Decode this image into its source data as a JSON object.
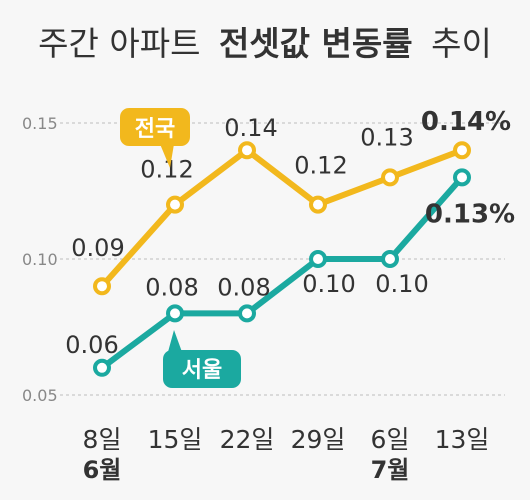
{
  "chart_data": {
    "type": "line",
    "title_regular": "주간 아파트",
    "title_bold": "전셋값 변동률",
    "title_suffix": "추이",
    "x": [
      "8일",
      "15일",
      "22일",
      "29일",
      "6일",
      "13일"
    ],
    "month_labels": [
      {
        "label": "6월",
        "at_index": 0
      },
      {
        "label": "7월",
        "at_index": 4
      }
    ],
    "yticks": [
      "0.15",
      "0.10",
      "0.05"
    ],
    "ylim": [
      0.05,
      0.15
    ],
    "grid": true,
    "series": [
      {
        "name": "전국",
        "color": "#f2b81d",
        "values": [
          0.09,
          0.12,
          0.14,
          0.12,
          0.13,
          0.14
        ],
        "labels": [
          "0.09",
          "0.12",
          "0.14",
          "0.12",
          "0.13",
          "0.14%"
        ]
      },
      {
        "name": "서울",
        "color": "#1ba9a0",
        "values": [
          0.06,
          0.08,
          0.08,
          0.1,
          0.1,
          0.13
        ],
        "labels": [
          "0.06",
          "0.08",
          "0.08",
          "0.10",
          "0.10",
          "0.13%"
        ]
      }
    ]
  }
}
